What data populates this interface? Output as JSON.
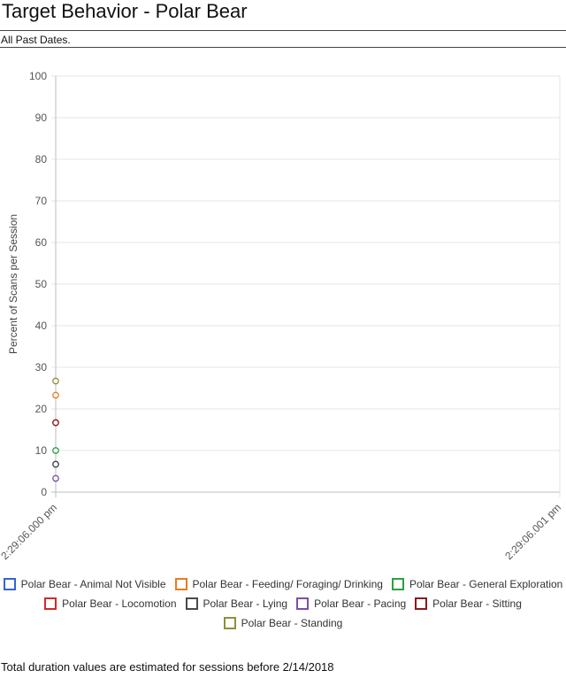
{
  "page": {
    "title": "Target Behavior - Polar Bear",
    "subtitle": "All Past Dates.",
    "footnote": "Total duration values are estimated for sessions before 2/14/2018"
  },
  "chart_data": {
    "type": "scatter",
    "title": "",
    "xlabel": "",
    "ylabel": "Percent of Scans per Session",
    "ylim": [
      0,
      100
    ],
    "y_ticks": [
      "0",
      "10",
      "20",
      "30",
      "40",
      "50",
      "60",
      "70",
      "80",
      "90",
      "100"
    ],
    "x_ticks": [
      "2:29:06.000 pm",
      "2:29:06.001 pm"
    ],
    "grid": true,
    "legend_position": "bottom",
    "series": [
      {
        "name": "Polar Bear - Animal Not Visible",
        "color": "#3366cc",
        "x": [
          "2:29:06.000 pm"
        ],
        "values": [
          6.7
        ]
      },
      {
        "name": "Polar Bear - Feeding/ Foraging/ Drinking",
        "color": "#e67e22",
        "x": [
          "2:29:06.000 pm"
        ],
        "values": [
          23.3
        ]
      },
      {
        "name": "Polar Bear - General Exploration",
        "color": "#2e9e44",
        "x": [
          "2:29:06.000 pm"
        ],
        "values": [
          10
        ]
      },
      {
        "name": "Polar Bear - Locomotion",
        "color": "#d62728",
        "x": [
          "2:29:06.000 pm"
        ],
        "values": [
          16.7
        ]
      },
      {
        "name": "Polar Bear - Lying",
        "color": "#4a4a4a",
        "x": [
          "2:29:06.000 pm"
        ],
        "values": [
          6.7
        ]
      },
      {
        "name": "Polar Bear - Pacing",
        "color": "#7b4fa6",
        "x": [
          "2:29:06.000 pm"
        ],
        "values": [
          3.3
        ]
      },
      {
        "name": "Polar Bear - Sitting",
        "color": "#8b1a1a",
        "x": [
          "2:29:06.000 pm"
        ],
        "values": [
          16.7
        ]
      },
      {
        "name": "Polar Bear - Standing",
        "color": "#8f8f3a",
        "x": [
          "2:29:06.000 pm"
        ],
        "values": [
          26.7
        ]
      }
    ]
  }
}
